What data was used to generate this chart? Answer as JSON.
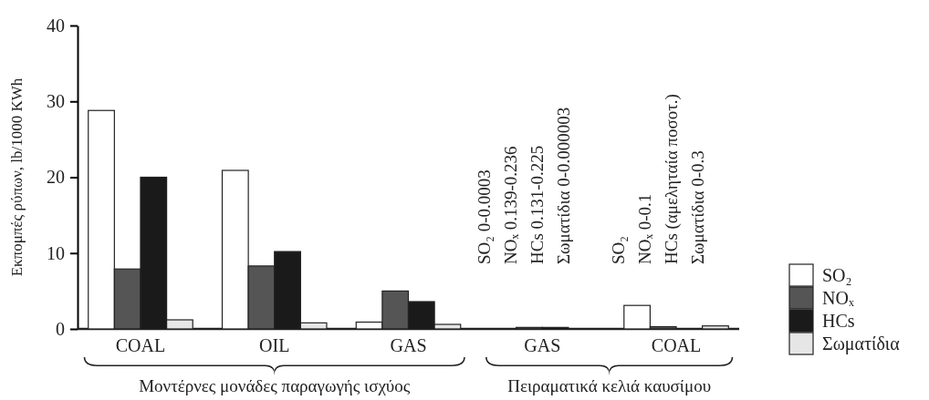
{
  "chart_data": {
    "type": "bar",
    "ylabel": "Εκπομπές ρύπων, lb/1000 KWh",
    "categories": [
      "COAL",
      "OIL",
      "GAS",
      "GAS",
      "COAL"
    ],
    "series": [
      {
        "name": "SO₂",
        "color": "#ffffff",
        "values": [
          28.8,
          20.9,
          0.9,
          0,
          3.1
        ]
      },
      {
        "name": "NOₓ",
        "color": "#555555",
        "values": [
          7.9,
          8.3,
          5.0,
          0.2,
          0.3
        ]
      },
      {
        "name": "HCs",
        "color": "#1a1a1a",
        "values": [
          20.0,
          10.2,
          3.6,
          0.2,
          0
        ]
      },
      {
        "name": "Σωματίδια",
        "color": "#e6e6e6",
        "values": [
          1.2,
          0.8,
          0.6,
          0,
          0.4
        ]
      }
    ],
    "ylim": [
      0,
      40
    ],
    "yticks": [
      0,
      10,
      20,
      30,
      40
    ],
    "grid": false,
    "legend": "right",
    "annotations": [
      "SO₂  0-0.0003",
      "NOₓ  0.139-0.236",
      "HCs  0.131-0.225",
      "Σωματίδια  0-0.000003",
      "SO₂",
      "NOₓ  0-0.1",
      "HCs  (αμεληταία ποσοτ.)",
      "Σωματίδια  0-0.3",
      "Μοντέρνες μονάδες παραγωγής ισχύος",
      "Πειραματικά κελιά καυσίμου"
    ]
  }
}
